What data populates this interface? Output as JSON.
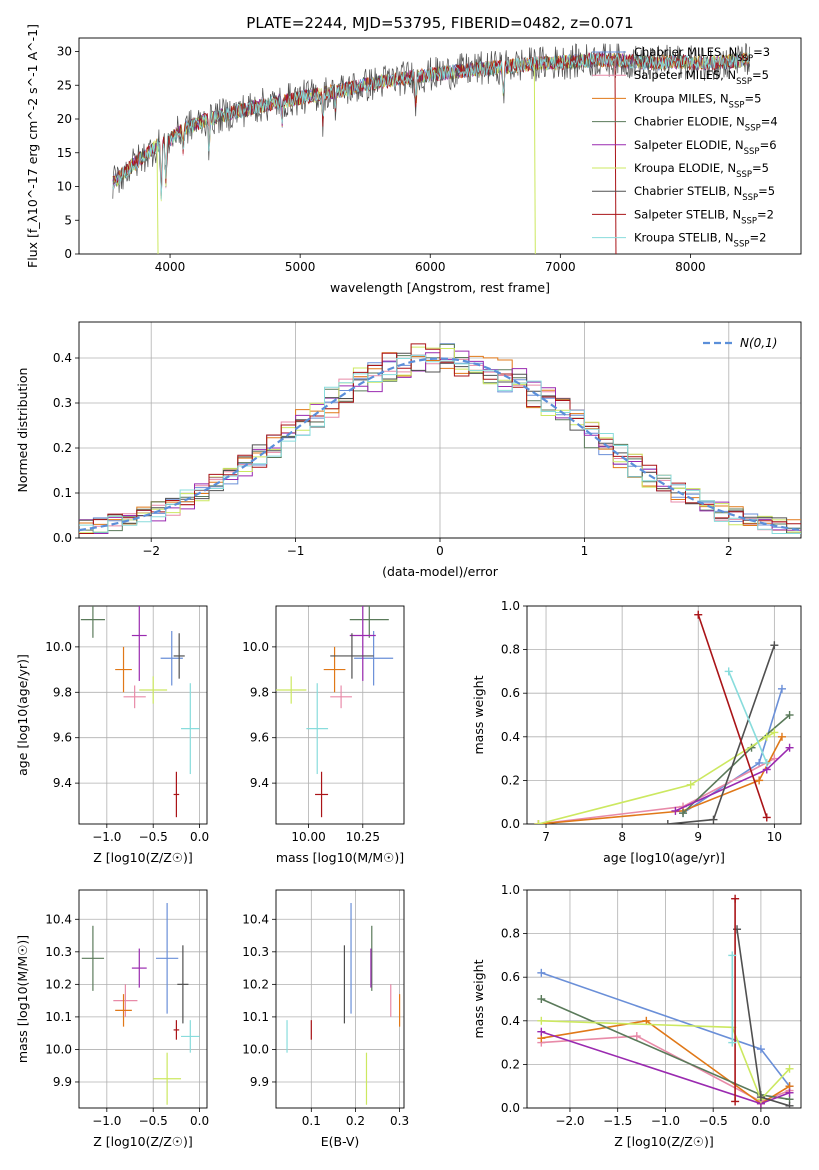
{
  "figure": {
    "title": "PLATE=2244, MJD=53795, FIBERID=0482, z=0.071"
  },
  "colors": {
    "Chabrier MILES": "#6a8fd8",
    "Salpeter MILES": "#e88aa8",
    "Kroupa MILES": "#e07818",
    "Chabrier ELODIE": "#5a7a5a",
    "Salpeter ELODIE": "#9a2ab0",
    "Kroupa ELODIE": "#cce860",
    "Chabrier STELIB": "#505050",
    "Salpeter STELIB": "#aa1418",
    "Kroupa STELIB": "#88dcdc",
    "gauss": "#5b8fd9"
  },
  "chart_data": [
    {
      "id": "spectrum",
      "type": "line",
      "xlabel": "wavelength [Angstrom, rest frame]",
      "ylabel": "Flux [f_λ10^-17 erg cm^-2 s^-1 A^-1]",
      "xlim": [
        3300,
        8850
      ],
      "ylim": [
        0,
        32
      ],
      "xticks": [
        4000,
        5000,
        6000,
        7000,
        8000
      ],
      "yticks": [
        0,
        5,
        10,
        15,
        20,
        25,
        30
      ],
      "legend_position": "top-right",
      "series": [
        {
          "name": "Chabrier MILES, N_SSP=3"
        },
        {
          "name": "Salpeter MILES, N_SSP=5"
        },
        {
          "name": "Kroupa MILES, N_SSP=5"
        },
        {
          "name": "Chabrier ELODIE, N_SSP=4"
        },
        {
          "name": "Salpeter ELODIE, N_SSP=6"
        },
        {
          "name": "Kroupa ELODIE, N_SSP=5"
        },
        {
          "name": "Chabrier STELIB, N_SSP=5"
        },
        {
          "name": "Salpeter STELIB, N_SSP=2"
        },
        {
          "name": "Kroupa STELIB, N_SSP=2"
        }
      ],
      "continuum": [
        [
          3560,
          10.5
        ],
        [
          3700,
          13
        ],
        [
          3900,
          16
        ],
        [
          4000,
          17
        ],
        [
          4100,
          18.5
        ],
        [
          4300,
          20
        ],
        [
          4500,
          21
        ],
        [
          4700,
          22
        ],
        [
          4900,
          22.8
        ],
        [
          5100,
          23.5
        ],
        [
          5300,
          24.2
        ],
        [
          5500,
          25
        ],
        [
          5700,
          25.8
        ],
        [
          5900,
          26.3
        ],
        [
          6100,
          26.8
        ],
        [
          6300,
          27.3
        ],
        [
          6500,
          27.6
        ],
        [
          6700,
          28
        ],
        [
          6900,
          28.3
        ],
        [
          7100,
          28.5
        ],
        [
          7300,
          28.8
        ],
        [
          7500,
          28.6
        ],
        [
          7700,
          28.3
        ],
        [
          7900,
          28.5
        ],
        [
          8100,
          28.2
        ],
        [
          8300,
          28.5
        ],
        [
          8450,
          28.8
        ]
      ],
      "absorption_lines": [
        [
          3933,
          -8
        ],
        [
          3968,
          -6
        ],
        [
          4101,
          -3
        ],
        [
          4300,
          -4
        ],
        [
          4861,
          -3
        ],
        [
          5175,
          -4
        ],
        [
          5270,
          -2
        ],
        [
          5890,
          -4
        ],
        [
          6563,
          -4
        ]
      ],
      "drops": [
        {
          "series": "Kroupa ELODIE",
          "x": 3900
        },
        {
          "series": "Kroupa ELODIE",
          "x": 6800
        },
        {
          "series": "Salpeter STELIB",
          "x": 7420
        }
      ]
    },
    {
      "id": "residuals",
      "type": "bar",
      "xlabel": "(data-model)/error",
      "ylabel": "Normed distribution",
      "xlim": [
        -2.5,
        2.5
      ],
      "ylim": [
        0,
        0.48
      ],
      "xticks": [
        -2,
        -1,
        0,
        1,
        2
      ],
      "yticks": [
        0.0,
        0.1,
        0.2,
        0.3,
        0.4
      ],
      "legend": "N(0,1)",
      "legend_position": "top-right",
      "bin_width": 0.1,
      "gauss": {
        "mu": 0,
        "sigma": 1
      }
    },
    {
      "id": "age-vs-Z",
      "type": "scatter",
      "xlabel": "Z [log10(Z/Z☉)]",
      "ylabel": "age [log10(age/yr)]",
      "xlim": [
        -1.3,
        0.08
      ],
      "ylim": [
        9.22,
        10.18
      ],
      "xticks": [
        -1.0,
        -0.5,
        0.0
      ],
      "yticks": [
        9.4,
        9.6,
        9.8,
        10.0
      ],
      "points": [
        {
          "s": "Chabrier MILES",
          "x": -0.3,
          "y": 9.95,
          "xe": 0.12,
          "ye": 0.12
        },
        {
          "s": "Salpeter MILES",
          "x": -0.7,
          "y": 9.78,
          "xe": 0.12,
          "ye": 0.05
        },
        {
          "s": "Kroupa MILES",
          "x": -0.82,
          "y": 9.9,
          "xe": 0.09,
          "ye": 0.1
        },
        {
          "s": "Chabrier ELODIE",
          "x": -1.15,
          "y": 10.12,
          "xe": 0.13,
          "ye": 0.08
        },
        {
          "s": "Salpeter ELODIE",
          "x": -0.65,
          "y": 10.05,
          "xe": 0.08,
          "ye": 0.2
        },
        {
          "s": "Kroupa ELODIE",
          "x": -0.5,
          "y": 9.81,
          "xe": 0.15,
          "ye": 0.06
        },
        {
          "s": "Chabrier STELIB",
          "x": -0.22,
          "y": 9.96,
          "xe": 0.06,
          "ye": 0.1
        },
        {
          "s": "Salpeter STELIB",
          "x": -0.25,
          "y": 9.35,
          "xe": 0.03,
          "ye": 0.1
        },
        {
          "s": "Kroupa STELIB",
          "x": -0.1,
          "y": 9.64,
          "xe": 0.1,
          "ye": 0.2
        }
      ]
    },
    {
      "id": "age-vs-mass",
      "type": "scatter",
      "xlabel": "mass [log10(M/M☉)]",
      "ylabel": "",
      "xlim": [
        9.85,
        10.44
      ],
      "ylim": [
        9.22,
        10.18
      ],
      "xticks": [
        10.0,
        10.25
      ],
      "yticks": [
        9.4,
        9.6,
        9.8,
        10.0
      ],
      "points": [
        {
          "s": "Chabrier MILES",
          "x": 10.3,
          "y": 9.95,
          "xe": 0.09,
          "ye": 0.12
        },
        {
          "s": "Salpeter MILES",
          "x": 10.15,
          "y": 9.78,
          "xe": 0.05,
          "ye": 0.05
        },
        {
          "s": "Kroupa MILES",
          "x": 10.12,
          "y": 9.9,
          "xe": 0.05,
          "ye": 0.1
        },
        {
          "s": "Chabrier ELODIE",
          "x": 10.28,
          "y": 10.12,
          "xe": 0.09,
          "ye": 0.08
        },
        {
          "s": "Salpeter ELODIE",
          "x": 10.25,
          "y": 10.05,
          "xe": 0.06,
          "ye": 0.2
        },
        {
          "s": "Kroupa ELODIE",
          "x": 9.92,
          "y": 9.81,
          "xe": 0.07,
          "ye": 0.06
        },
        {
          "s": "Chabrier STELIB",
          "x": 10.2,
          "y": 9.96,
          "xe": 0.1,
          "ye": 0.1
        },
        {
          "s": "Salpeter STELIB",
          "x": 10.06,
          "y": 9.35,
          "xe": 0.03,
          "ye": 0.1
        },
        {
          "s": "Kroupa STELIB",
          "x": 10.04,
          "y": 9.64,
          "xe": 0.05,
          "ye": 0.2
        }
      ]
    },
    {
      "id": "weight-vs-age",
      "type": "line",
      "xlabel": "age [log10(age/yr)]",
      "ylabel": "mass weight",
      "xlim": [
        6.75,
        10.35
      ],
      "ylim": [
        0,
        1.0
      ],
      "xticks": [
        7,
        8,
        9,
        10
      ],
      "yticks": [
        0.0,
        0.2,
        0.4,
        0.6,
        0.8,
        1.0
      ],
      "series": [
        {
          "name": "Chabrier MILES",
          "x": [
            8.8,
            9.8,
            10.1
          ],
          "y": [
            0.05,
            0.28,
            0.62
          ]
        },
        {
          "name": "Salpeter MILES",
          "x": [
            6.9,
            8.8,
            10.0
          ],
          "y": [
            0.0,
            0.08,
            0.3
          ]
        },
        {
          "name": "Kroupa MILES",
          "x": [
            6.9,
            8.8,
            9.8,
            10.1
          ],
          "y": [
            0.0,
            0.06,
            0.2,
            0.4
          ]
        },
        {
          "name": "Chabrier ELODIE",
          "x": [
            8.8,
            9.7,
            10.2
          ],
          "y": [
            0.05,
            0.35,
            0.5
          ]
        },
        {
          "name": "Salpeter ELODIE",
          "x": [
            8.7,
            9.9,
            10.2
          ],
          "y": [
            0.06,
            0.25,
            0.35
          ]
        },
        {
          "name": "Kroupa ELODIE",
          "x": [
            6.9,
            8.9,
            9.9,
            10.0
          ],
          "y": [
            0.0,
            0.18,
            0.4,
            0.42
          ]
        },
        {
          "name": "Chabrier STELIB",
          "x": [
            8.6,
            9.2,
            10.0
          ],
          "y": [
            0.0,
            0.02,
            0.82
          ]
        },
        {
          "name": "Salpeter STELIB",
          "x": [
            9.0,
            9.9
          ],
          "y": [
            0.96,
            0.03
          ]
        },
        {
          "name": "Kroupa STELIB",
          "x": [
            9.4,
            9.9
          ],
          "y": [
            0.7,
            0.28
          ]
        }
      ]
    },
    {
      "id": "mass-vs-Z",
      "type": "scatter",
      "xlabel": "Z [log10(Z/Z☉)]",
      "ylabel": "mass [log10(M/M☉)]",
      "xlim": [
        -1.3,
        0.08
      ],
      "ylim": [
        9.82,
        10.49
      ],
      "xticks": [
        -1.0,
        -0.5,
        0.0
      ],
      "yticks": [
        9.9,
        10.0,
        10.1,
        10.2,
        10.3,
        10.4
      ],
      "points": [
        {
          "s": "Chabrier MILES",
          "x": -0.35,
          "y": 10.28,
          "xe": 0.12,
          "ye": 0.17
        },
        {
          "s": "Salpeter MILES",
          "x": -0.8,
          "y": 10.15,
          "xe": 0.13,
          "ye": 0.05
        },
        {
          "s": "Kroupa MILES",
          "x": -0.82,
          "y": 10.12,
          "xe": 0.09,
          "ye": 0.05
        },
        {
          "s": "Chabrier ELODIE",
          "x": -1.15,
          "y": 10.28,
          "xe": 0.12,
          "ye": 0.1
        },
        {
          "s": "Salpeter ELODIE",
          "x": -0.65,
          "y": 10.25,
          "xe": 0.08,
          "ye": 0.06
        },
        {
          "s": "Kroupa ELODIE",
          "x": -0.35,
          "y": 9.91,
          "xe": 0.15,
          "ye": 0.08
        },
        {
          "s": "Chabrier STELIB",
          "x": -0.18,
          "y": 10.2,
          "xe": 0.06,
          "ye": 0.12
        },
        {
          "s": "Salpeter STELIB",
          "x": -0.25,
          "y": 10.06,
          "xe": 0.03,
          "ye": 0.03
        },
        {
          "s": "Kroupa STELIB",
          "x": -0.1,
          "y": 10.04,
          "xe": 0.1,
          "ye": 0.05
        }
      ]
    },
    {
      "id": "mass-vs-EBV",
      "type": "scatter",
      "xlabel": "E(B-V)",
      "ylabel": "",
      "xlim": [
        0.02,
        0.31
      ],
      "ylim": [
        9.82,
        10.49
      ],
      "xticks": [
        0.1,
        0.2,
        0.3
      ],
      "yticks": [
        9.9,
        10.0,
        10.1,
        10.2,
        10.3,
        10.4
      ],
      "points": [
        {
          "s": "Chabrier MILES",
          "x": 0.19,
          "y": 10.28,
          "xe": 0,
          "ye": 0.17
        },
        {
          "s": "Salpeter MILES",
          "x": 0.28,
          "y": 10.15,
          "xe": 0,
          "ye": 0.05
        },
        {
          "s": "Kroupa MILES",
          "x": 0.3,
          "y": 10.12,
          "xe": 0,
          "ye": 0.05
        },
        {
          "s": "Chabrier ELODIE",
          "x": 0.237,
          "y": 10.28,
          "xe": 0,
          "ye": 0.1
        },
        {
          "s": "Salpeter ELODIE",
          "x": 0.235,
          "y": 10.25,
          "xe": 0,
          "ye": 0.06
        },
        {
          "s": "Kroupa ELODIE",
          "x": 0.225,
          "y": 9.91,
          "xe": 0,
          "ye": 0.08
        },
        {
          "s": "Chabrier STELIB",
          "x": 0.175,
          "y": 10.2,
          "xe": 0,
          "ye": 0.12
        },
        {
          "s": "Salpeter STELIB",
          "x": 0.1,
          "y": 10.06,
          "xe": 0,
          "ye": 0.03
        },
        {
          "s": "Kroupa STELIB",
          "x": 0.045,
          "y": 10.04,
          "xe": 0,
          "ye": 0.05
        }
      ]
    },
    {
      "id": "weight-vs-Z",
      "type": "line",
      "xlabel": "Z [log10(Z/Z☉)]",
      "ylabel": "mass weight",
      "xlim": [
        -2.45,
        0.42
      ],
      "ylim": [
        0,
        1.0
      ],
      "xticks": [
        -2.0,
        -1.5,
        -1.0,
        -0.5,
        0.0
      ],
      "yticks": [
        0.0,
        0.2,
        0.4,
        0.6,
        0.8,
        1.0
      ],
      "series": [
        {
          "name": "Chabrier MILES",
          "x": [
            -2.3,
            0.0,
            0.3
          ],
          "y": [
            0.62,
            0.27,
            0.1
          ]
        },
        {
          "name": "Salpeter MILES",
          "x": [
            -2.3,
            -1.3,
            0.0,
            0.3
          ],
          "y": [
            0.3,
            0.33,
            0.03,
            0.08
          ]
        },
        {
          "name": "Kroupa MILES",
          "x": [
            -2.3,
            -1.2,
            0.0,
            0.3
          ],
          "y": [
            0.32,
            0.4,
            0.02,
            0.1
          ]
        },
        {
          "name": "Chabrier ELODIE",
          "x": [
            -2.3,
            0.0,
            0.3
          ],
          "y": [
            0.5,
            0.06,
            0.04
          ]
        },
        {
          "name": "Salpeter ELODIE",
          "x": [
            -2.3,
            0.0,
            0.3
          ],
          "y": [
            0.35,
            0.02,
            0.07
          ]
        },
        {
          "name": "Kroupa ELODIE",
          "x": [
            -2.3,
            -0.3,
            0.0,
            0.3
          ],
          "y": [
            0.4,
            0.37,
            0.04,
            0.18
          ]
        },
        {
          "name": "Chabrier STELIB",
          "x": [
            -0.25,
            0.0,
            0.3
          ],
          "y": [
            0.82,
            0.05,
            0.01
          ]
        },
        {
          "name": "Salpeter STELIB",
          "x": [
            -0.27,
            -0.27
          ],
          "y": [
            0.96,
            0.03
          ]
        },
        {
          "name": "Kroupa STELIB",
          "x": [
            -0.3,
            -0.3
          ],
          "y": [
            0.7,
            0.3
          ]
        }
      ]
    }
  ]
}
